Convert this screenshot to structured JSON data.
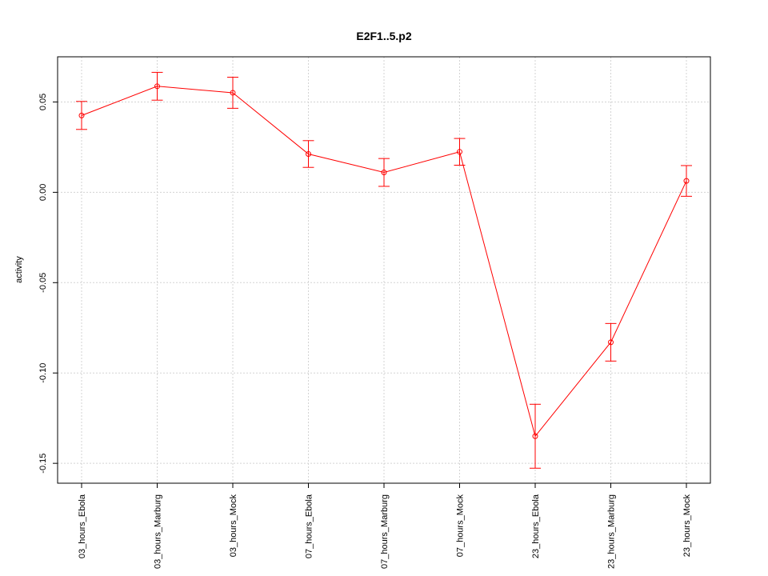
{
  "chart_data": {
    "type": "line",
    "title": "E2F1..5.p2",
    "xlabel": "",
    "ylabel": "activity",
    "categories": [
      "03_hours_Ebola",
      "03_hours_Marburg",
      "03_hours_Mock",
      "07_hours_Ebola",
      "07_hours_Marburg",
      "07_hours_Mock",
      "23_hours_Ebola",
      "23_hours_Marburg",
      "23_hours_Mock"
    ],
    "ylim": [
      -0.161,
      0.075
    ],
    "yticks": [
      -0.15,
      -0.1,
      -0.05,
      0.0,
      0.05
    ],
    "ytick_labels": [
      "-0.15",
      "-0.10",
      "-0.05",
      "0.00",
      "0.05"
    ],
    "grid": true,
    "series": [
      {
        "color": "#ff0000",
        "values": [
          0.0425,
          0.0587,
          0.0551,
          0.0212,
          0.011,
          0.0224,
          -0.135,
          -0.083,
          0.0063
        ],
        "error_low": [
          0.0348,
          0.051,
          0.0465,
          0.0138,
          0.0033,
          0.015,
          -0.1527,
          -0.0934,
          -0.0022
        ],
        "error_high": [
          0.0503,
          0.0664,
          0.0637,
          0.0286,
          0.0187,
          0.0298,
          -0.1173,
          -0.0726,
          0.0148
        ]
      }
    ]
  }
}
